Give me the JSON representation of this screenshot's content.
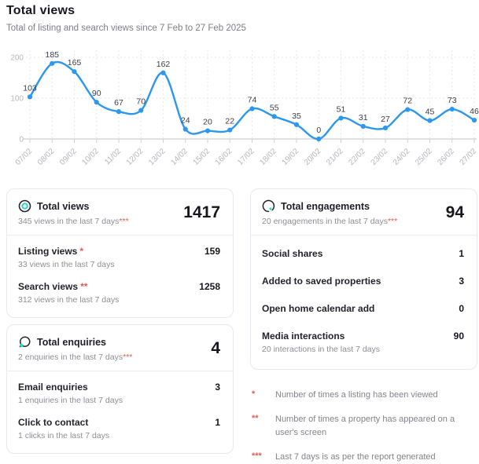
{
  "header": {
    "title": "Total views",
    "subtitle": "Total of listing and search views since 7 Feb to 27 Feb 2025"
  },
  "chart_data": {
    "type": "line",
    "title": "Total views over time",
    "x": [
      "07/02",
      "08/02",
      "09/02",
      "10/02",
      "11/02",
      "12/02",
      "13/02",
      "14/02",
      "15/02",
      "16/02",
      "17/02",
      "18/02",
      "19/02",
      "20/02",
      "21/02",
      "22/02",
      "23/02",
      "24/02",
      "25/02",
      "26/02",
      "27/02"
    ],
    "series": [
      {
        "name": "Total views",
        "values": [
          103,
          185,
          165,
          90,
          67,
          70,
          162,
          24,
          20,
          22,
          74,
          55,
          35,
          0,
          51,
          31,
          27,
          72,
          45,
          73,
          46
        ]
      }
    ],
    "yticks": [
      0,
      100,
      200
    ],
    "ylim": [
      0,
      220
    ],
    "grid": true,
    "legend": "none",
    "line_color": "#2b97f1",
    "point_labels": true
  },
  "cards": {
    "total_views": {
      "title": "Total views",
      "icon": "target-circle-icon",
      "subtitle": "345 views in the last 7 days",
      "subtitle_marker": "***",
      "value": "1417",
      "rows": [
        {
          "label": "Listing views",
          "marker": "*",
          "sub": "33 views in the last 7 days",
          "value": "159"
        },
        {
          "label": "Search views",
          "marker": "**",
          "sub": "312 views in the last 7 days",
          "value": "1258"
        }
      ]
    },
    "total_enquiries": {
      "title": "Total enquiries",
      "icon": "speech-bubble-icon",
      "subtitle": "2 enquiries in the last 7 days",
      "subtitle_marker": "***",
      "value": "4",
      "rows": [
        {
          "label": "Email enquiries",
          "marker": "",
          "sub": "1 enquiries in the last 7 days",
          "value": "3"
        },
        {
          "label": "Click to contact",
          "marker": "",
          "sub": "1 clicks in the last 7 days",
          "value": "1"
        }
      ]
    },
    "total_engagements": {
      "title": "Total engagements",
      "icon": "circle-heart-icon",
      "subtitle": "20 engagements in the last 7 days",
      "subtitle_marker": "***",
      "value": "94",
      "rows": [
        {
          "label": "Social shares",
          "marker": "",
          "sub": "",
          "value": "1"
        },
        {
          "label": "Added to saved properties",
          "marker": "",
          "sub": "",
          "value": "3"
        },
        {
          "label": "Open home calendar add",
          "marker": "",
          "sub": "",
          "value": "0"
        },
        {
          "label": "Media interactions",
          "marker": "",
          "sub": "20 interactions in the last 7 days",
          "value": "90"
        }
      ]
    }
  },
  "footnotes": [
    {
      "marker": "*",
      "text": "Number of times a listing has been viewed"
    },
    {
      "marker": "**",
      "text": "Number of times a property has appeared on a user's screen"
    },
    {
      "marker": "***",
      "text": "Last 7 days is as per the report generated"
    }
  ],
  "colors": {
    "accent_blue": "#2b97f1",
    "accent_teal": "#2fd5c8",
    "marker_red": "#e25c55"
  }
}
